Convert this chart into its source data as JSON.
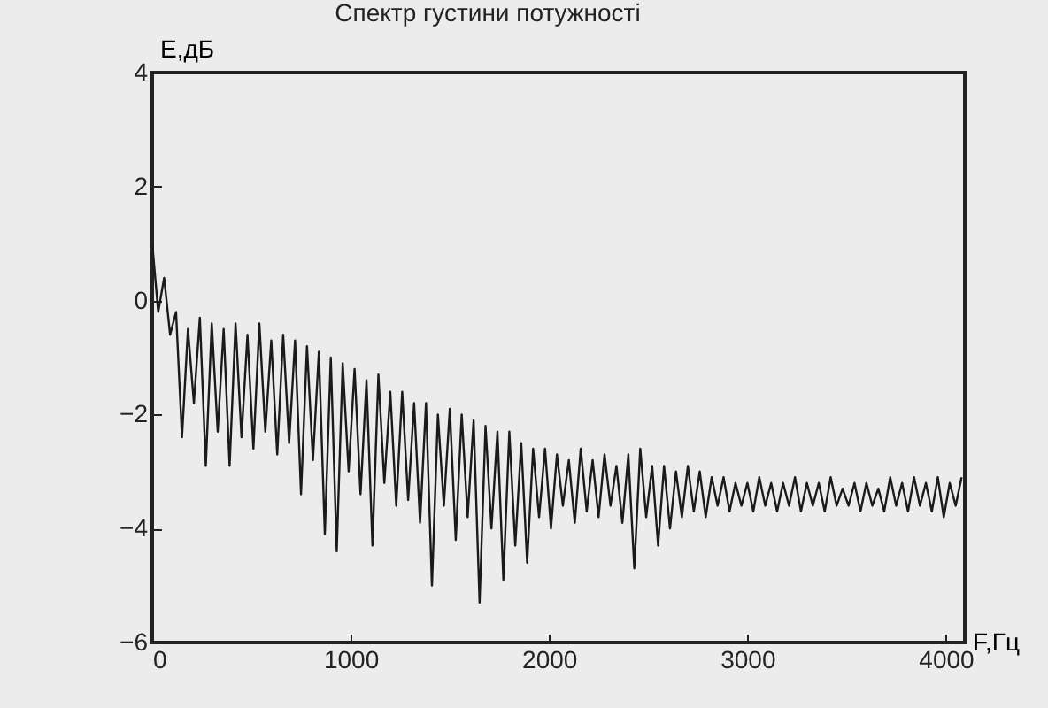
{
  "chart_data": {
    "type": "line",
    "title": "Спектр густини потужності",
    "xlabel": "F,Гц",
    "ylabel": "E,дБ",
    "x": [
      0,
      30,
      60,
      90,
      120,
      150,
      180,
      210,
      240,
      270,
      300,
      330,
      360,
      390,
      420,
      450,
      480,
      510,
      540,
      570,
      600,
      630,
      660,
      690,
      720,
      750,
      780,
      810,
      840,
      870,
      900,
      930,
      960,
      990,
      1020,
      1050,
      1080,
      1110,
      1140,
      1170,
      1200,
      1230,
      1260,
      1290,
      1320,
      1350,
      1380,
      1410,
      1440,
      1470,
      1500,
      1530,
      1560,
      1590,
      1620,
      1650,
      1680,
      1710,
      1740,
      1770,
      1800,
      1830,
      1860,
      1890,
      1920,
      1950,
      1980,
      2010,
      2040,
      2070,
      2100,
      2130,
      2160,
      2190,
      2220,
      2250,
      2280,
      2310,
      2340,
      2370,
      2400,
      2430,
      2460,
      2490,
      2520,
      2550,
      2580,
      2610,
      2640,
      2670,
      2700,
      2730,
      2760,
      2790,
      2820,
      2850,
      2880,
      2910,
      2940,
      2970,
      3000,
      3030,
      3060,
      3090,
      3120,
      3150,
      3180,
      3210,
      3240,
      3270,
      3300,
      3330,
      3360,
      3390,
      3420,
      3450,
      3480,
      3510,
      3540,
      3570,
      3600,
      3630,
      3660,
      3690,
      3720,
      3750,
      3780,
      3810,
      3840,
      3870,
      3900,
      3930,
      3960,
      3990,
      4020,
      4050,
      4080
    ],
    "series": [
      {
        "color": "#1a1a1a",
        "values": [
          1.0,
          -0.2,
          0.4,
          -0.6,
          -0.2,
          -2.4,
          -0.5,
          -1.8,
          -0.3,
          -2.9,
          -0.4,
          -2.3,
          -0.5,
          -2.9,
          -0.4,
          -2.4,
          -0.6,
          -2.6,
          -0.4,
          -2.3,
          -0.7,
          -2.7,
          -0.6,
          -2.5,
          -0.7,
          -3.4,
          -0.8,
          -2.8,
          -0.9,
          -4.1,
          -1.0,
          -4.4,
          -1.1,
          -3.0,
          -1.2,
          -3.4,
          -1.4,
          -4.3,
          -1.3,
          -3.2,
          -1.6,
          -3.6,
          -1.6,
          -3.5,
          -1.8,
          -3.9,
          -1.8,
          -5.0,
          -2.0,
          -3.6,
          -1.9,
          -4.2,
          -2.0,
          -3.8,
          -2.1,
          -5.3,
          -2.2,
          -4.0,
          -2.3,
          -4.9,
          -2.3,
          -4.3,
          -2.5,
          -4.6,
          -2.6,
          -3.8,
          -2.6,
          -4.0,
          -2.7,
          -3.6,
          -2.8,
          -3.9,
          -2.6,
          -3.7,
          -2.8,
          -3.8,
          -2.7,
          -3.6,
          -2.9,
          -3.9,
          -2.7,
          -4.7,
          -2.6,
          -3.8,
          -2.9,
          -4.3,
          -2.9,
          -4.0,
          -3.0,
          -3.8,
          -2.9,
          -3.7,
          -3.0,
          -3.8,
          -3.1,
          -3.6,
          -3.1,
          -3.7,
          -3.2,
          -3.6,
          -3.2,
          -3.7,
          -3.1,
          -3.6,
          -3.2,
          -3.7,
          -3.2,
          -3.6,
          -3.1,
          -3.7,
          -3.2,
          -3.6,
          -3.2,
          -3.7,
          -3.1,
          -3.6,
          -3.3,
          -3.6,
          -3.2,
          -3.7,
          -3.2,
          -3.6,
          -3.3,
          -3.7,
          -3.1,
          -3.6,
          -3.2,
          -3.7,
          -3.1,
          -3.6,
          -3.2,
          -3.7,
          -3.1,
          -3.8,
          -3.2,
          -3.6,
          -3.1
        ]
      }
    ],
    "xlim": [
      0,
      4096
    ],
    "xticks": [
      0,
      1000,
      2000,
      3000,
      4000
    ],
    "ylim": [
      -6,
      4
    ],
    "yticks": [
      -6,
      -4,
      -2,
      0,
      2,
      4
    ],
    "grid": false
  }
}
